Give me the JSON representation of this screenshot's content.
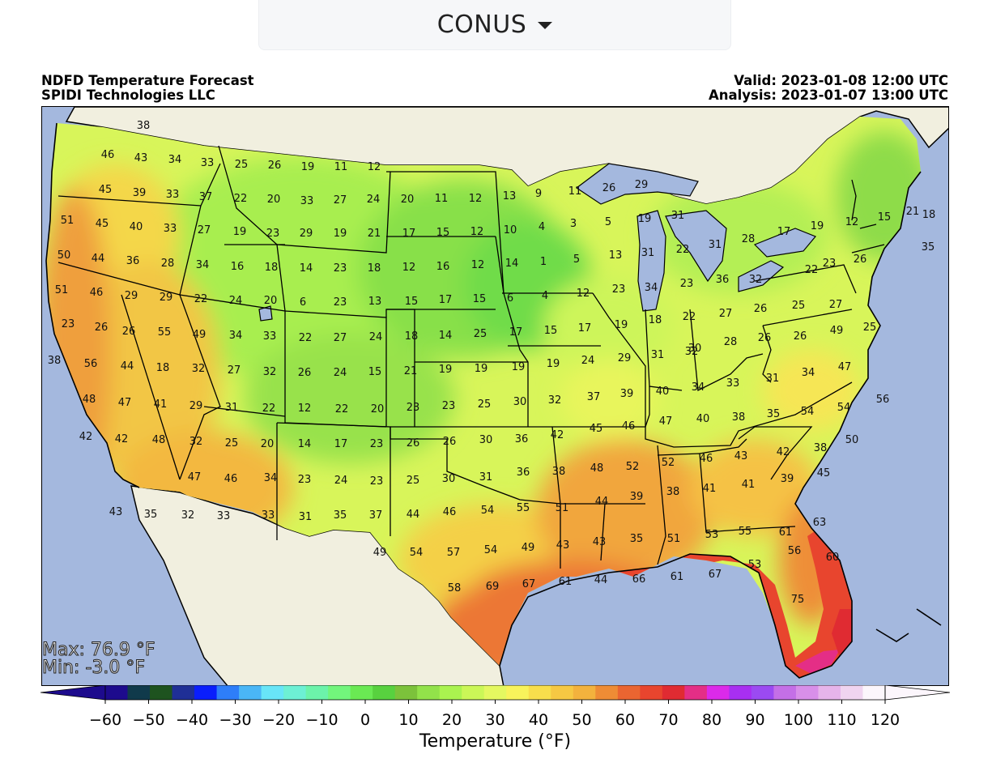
{
  "region_selector": {
    "label": "CONUS"
  },
  "header": {
    "title": "NDFD Temperature Forecast",
    "org": "SPIDI Technologies LLC",
    "valid": "Valid: 2023-01-08 12:00 UTC",
    "analysis": "Analysis: 2023-01-07 13:00 UTC"
  },
  "stats": {
    "max": "Max: 76.9 °F",
    "min": "Min: -3.0 °F"
  },
  "colorbar": {
    "title": "Temperature (°F)",
    "ticks": [
      "−60",
      "−50",
      "−40",
      "−30",
      "−20",
      "−10",
      "0",
      "10",
      "20",
      "30",
      "40",
      "50",
      "60",
      "70",
      "80",
      "90",
      "100",
      "110",
      "120"
    ],
    "range": [
      -60,
      120
    ],
    "colors": [
      "#1d0b8d",
      "#103a4b",
      "#1e531f",
      "#1f2f96",
      "#0a1efc",
      "#2e7ef9",
      "#4ab6f6",
      "#68e5f7",
      "#6df0d4",
      "#6cf3aa",
      "#72f57c",
      "#6ae953",
      "#58d13f",
      "#7cc23b",
      "#92e24a",
      "#aaf34f",
      "#cbf757",
      "#e4f860",
      "#f8f35b",
      "#f8de4c",
      "#f6c843",
      "#f3b23d",
      "#ee8c35",
      "#ea6531",
      "#e8452e",
      "#e02b32",
      "#e42e86",
      "#db2ae9",
      "#a82ff1",
      "#9b4af2",
      "#c46fe7",
      "#d88fe9",
      "#e6b4ea",
      "#f0d4f0",
      "#fcf6fc"
    ],
    "colors_step": 5
  },
  "station_values": [
    {
      "t": "38"
    },
    {
      "t": "46"
    },
    {
      "t": "43"
    },
    {
      "t": "34"
    },
    {
      "t": "33"
    },
    {
      "t": "25"
    },
    {
      "t": "26"
    },
    {
      "t": "19"
    },
    {
      "t": "11"
    },
    {
      "t": "12"
    },
    {
      "t": "45"
    },
    {
      "t": "39"
    },
    {
      "t": "33"
    },
    {
      "t": "37"
    },
    {
      "t": "22"
    },
    {
      "t": "20"
    },
    {
      "t": "33"
    },
    {
      "t": "27"
    },
    {
      "t": "24"
    },
    {
      "t": "20"
    },
    {
      "t": "11"
    },
    {
      "t": "12"
    },
    {
      "t": "13"
    },
    {
      "t": "9"
    },
    {
      "t": "11"
    },
    {
      "t": "26"
    },
    {
      "t": "29"
    },
    {
      "t": "51"
    },
    {
      "t": "45"
    },
    {
      "t": "40"
    },
    {
      "t": "33"
    },
    {
      "t": "27"
    },
    {
      "t": "19"
    },
    {
      "t": "23"
    },
    {
      "t": "29"
    },
    {
      "t": "19"
    },
    {
      "t": "21"
    },
    {
      "t": "17"
    },
    {
      "t": "15"
    },
    {
      "t": "12"
    },
    {
      "t": "10"
    },
    {
      "t": "4"
    },
    {
      "t": "3"
    },
    {
      "t": "5"
    },
    {
      "t": "19"
    },
    {
      "t": "31"
    },
    {
      "t": "50"
    },
    {
      "t": "44"
    },
    {
      "t": "36"
    },
    {
      "t": "28"
    },
    {
      "t": "34"
    },
    {
      "t": "16"
    },
    {
      "t": "18"
    },
    {
      "t": "14"
    },
    {
      "t": "23"
    },
    {
      "t": "18"
    },
    {
      "t": "12"
    },
    {
      "t": "16"
    },
    {
      "t": "12"
    },
    {
      "t": "14"
    },
    {
      "t": "1"
    },
    {
      "t": "5"
    },
    {
      "t": "13"
    },
    {
      "t": "31"
    },
    {
      "t": "22"
    },
    {
      "t": "31"
    },
    {
      "t": "28"
    },
    {
      "t": "17"
    },
    {
      "t": "19"
    },
    {
      "t": "12"
    },
    {
      "t": "15"
    },
    {
      "t": "21"
    },
    {
      "t": "18"
    },
    {
      "t": "35"
    },
    {
      "t": "22"
    },
    {
      "t": "23"
    },
    {
      "t": "26"
    },
    {
      "t": "51"
    },
    {
      "t": "46"
    },
    {
      "t": "29"
    },
    {
      "t": "29"
    },
    {
      "t": "22"
    },
    {
      "t": "24"
    },
    {
      "t": "20"
    },
    {
      "t": "6"
    },
    {
      "t": "23"
    },
    {
      "t": "13"
    },
    {
      "t": "15"
    },
    {
      "t": "17"
    },
    {
      "t": "15"
    },
    {
      "t": "6"
    },
    {
      "t": "4"
    },
    {
      "t": "12"
    },
    {
      "t": "23"
    },
    {
      "t": "34"
    },
    {
      "t": "23"
    },
    {
      "t": "36"
    },
    {
      "t": "32"
    },
    {
      "t": "23"
    },
    {
      "t": "26"
    },
    {
      "t": "26"
    },
    {
      "t": "55"
    },
    {
      "t": "49"
    },
    {
      "t": "34"
    },
    {
      "t": "33"
    },
    {
      "t": "22"
    },
    {
      "t": "27"
    },
    {
      "t": "24"
    },
    {
      "t": "18"
    },
    {
      "t": "14"
    },
    {
      "t": "25"
    },
    {
      "t": "17"
    },
    {
      "t": "15"
    },
    {
      "t": "17"
    },
    {
      "t": "19"
    },
    {
      "t": "18"
    },
    {
      "t": "22"
    },
    {
      "t": "27"
    },
    {
      "t": "26"
    },
    {
      "t": "25"
    },
    {
      "t": "27"
    },
    {
      "t": "25"
    },
    {
      "t": "38"
    },
    {
      "t": "56"
    },
    {
      "t": "44"
    },
    {
      "t": "18"
    },
    {
      "t": "32"
    },
    {
      "t": "27"
    },
    {
      "t": "32"
    },
    {
      "t": "26"
    },
    {
      "t": "24"
    },
    {
      "t": "15"
    },
    {
      "t": "21"
    },
    {
      "t": "19"
    },
    {
      "t": "19"
    },
    {
      "t": "19"
    },
    {
      "t": "19"
    },
    {
      "t": "24"
    },
    {
      "t": "29"
    },
    {
      "t": "31"
    },
    {
      "t": "32"
    },
    {
      "t": "30"
    },
    {
      "t": "28"
    },
    {
      "t": "26"
    },
    {
      "t": "26"
    },
    {
      "t": "49"
    },
    {
      "t": "48"
    },
    {
      "t": "47"
    },
    {
      "t": "41"
    },
    {
      "t": "29"
    },
    {
      "t": "31"
    },
    {
      "t": "22"
    },
    {
      "t": "12"
    },
    {
      "t": "22"
    },
    {
      "t": "20"
    },
    {
      "t": "23"
    },
    {
      "t": "23"
    },
    {
      "t": "25"
    },
    {
      "t": "30"
    },
    {
      "t": "32"
    },
    {
      "t": "37"
    },
    {
      "t": "39"
    },
    {
      "t": "40"
    },
    {
      "t": "34"
    },
    {
      "t": "33"
    },
    {
      "t": "31"
    },
    {
      "t": "34"
    },
    {
      "t": "47"
    },
    {
      "t": "56"
    },
    {
      "t": "42"
    },
    {
      "t": "42"
    },
    {
      "t": "48"
    },
    {
      "t": "32"
    },
    {
      "t": "25"
    },
    {
      "t": "20"
    },
    {
      "t": "14"
    },
    {
      "t": "17"
    },
    {
      "t": "23"
    },
    {
      "t": "26"
    },
    {
      "t": "26"
    },
    {
      "t": "30"
    },
    {
      "t": "36"
    },
    {
      "t": "42"
    },
    {
      "t": "45"
    },
    {
      "t": "46"
    },
    {
      "t": "47"
    },
    {
      "t": "40"
    },
    {
      "t": "38"
    },
    {
      "t": "35"
    },
    {
      "t": "54"
    },
    {
      "t": "54"
    },
    {
      "t": "50"
    },
    {
      "t": "47"
    },
    {
      "t": "46"
    },
    {
      "t": "34"
    },
    {
      "t": "23"
    },
    {
      "t": "24"
    },
    {
      "t": "23"
    },
    {
      "t": "25"
    },
    {
      "t": "30"
    },
    {
      "t": "31"
    },
    {
      "t": "36"
    },
    {
      "t": "38"
    },
    {
      "t": "48"
    },
    {
      "t": "52"
    },
    {
      "t": "52"
    },
    {
      "t": "46"
    },
    {
      "t": "43"
    },
    {
      "t": "42"
    },
    {
      "t": "38"
    },
    {
      "t": "43"
    },
    {
      "t": "35"
    },
    {
      "t": "32"
    },
    {
      "t": "33"
    },
    {
      "t": "33"
    },
    {
      "t": "31"
    },
    {
      "t": "35"
    },
    {
      "t": "37"
    },
    {
      "t": "44"
    },
    {
      "t": "46"
    },
    {
      "t": "54"
    },
    {
      "t": "55"
    },
    {
      "t": "51"
    },
    {
      "t": "44"
    },
    {
      "t": "39"
    },
    {
      "t": "38"
    },
    {
      "t": "41"
    },
    {
      "t": "41"
    },
    {
      "t": "39"
    },
    {
      "t": "45"
    },
    {
      "t": "49"
    },
    {
      "t": "54"
    },
    {
      "t": "57"
    },
    {
      "t": "54"
    },
    {
      "t": "49"
    },
    {
      "t": "43"
    },
    {
      "t": "43"
    },
    {
      "t": "35"
    },
    {
      "t": "51"
    },
    {
      "t": "53"
    },
    {
      "t": "55"
    },
    {
      "t": "61"
    },
    {
      "t": "63"
    },
    {
      "t": "58"
    },
    {
      "t": "69"
    },
    {
      "t": "67"
    },
    {
      "t": "61"
    },
    {
      "t": "44"
    },
    {
      "t": "66"
    },
    {
      "t": "61"
    },
    {
      "t": "67"
    },
    {
      "t": "53"
    },
    {
      "t": "56"
    },
    {
      "t": "60"
    },
    {
      "t": "75"
    }
  ]
}
